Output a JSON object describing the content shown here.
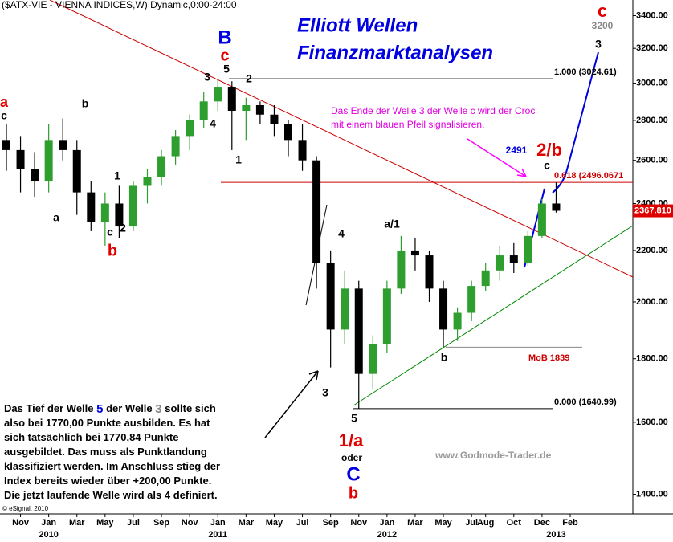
{
  "chart_data": {
    "type": "candlestick",
    "title": "($ATX-VIE - VIENNA INDICES,W) Dynamic,0:00-24:00",
    "heading": [
      "Elliott Wellen",
      "Finanzmarktanalysen"
    ],
    "x": [
      "2009-10",
      "2009-11",
      "2009-12",
      "2010-01",
      "2010-02",
      "2010-03",
      "2010-04",
      "2010-05",
      "2010-06",
      "2010-07",
      "2010-08",
      "2010-09",
      "2010-10",
      "2010-11",
      "2010-12",
      "2011-01",
      "2011-02",
      "2011-03",
      "2011-04",
      "2011-05",
      "2011-06",
      "2011-07",
      "2011-08",
      "2011-09",
      "2011-10",
      "2011-11",
      "2011-12",
      "2012-01",
      "2012-02",
      "2012-03",
      "2012-04",
      "2012-05",
      "2012-06",
      "2012-07",
      "2012-08",
      "2012-09",
      "2012-10",
      "2012-11",
      "2012-12",
      "2013-01"
    ],
    "open": [
      2700,
      2650,
      2560,
      2500,
      2700,
      2650,
      2450,
      2320,
      2400,
      2300,
      2480,
      2520,
      2620,
      2720,
      2800,
      2900,
      2980,
      2850,
      2880,
      2830,
      2780,
      2700,
      2600,
      2150,
      1900,
      2050,
      1750,
      1850,
      2050,
      2200,
      2180,
      2050,
      1900,
      1960,
      2060,
      2120,
      2180,
      2150,
      2260,
      2400
    ],
    "high": [
      2780,
      2720,
      2640,
      2780,
      2810,
      2700,
      2500,
      2450,
      2480,
      2500,
      2560,
      2650,
      2750,
      2830,
      2950,
      3024,
      3010,
      2920,
      2900,
      2880,
      2800,
      2780,
      2620,
      2200,
      2120,
      2080,
      1880,
      2080,
      2260,
      2250,
      2200,
      2080,
      1980,
      2080,
      2150,
      2220,
      2230,
      2280,
      2420,
      2496
    ],
    "low": [
      2550,
      2450,
      2430,
      2450,
      2600,
      2350,
      2280,
      2220,
      2250,
      2280,
      2400,
      2480,
      2580,
      2650,
      2760,
      2850,
      2650,
      2700,
      2780,
      2720,
      2620,
      2550,
      2050,
      1771,
      1850,
      1641,
      1700,
      1820,
      2030,
      2120,
      2000,
      1840,
      1860,
      1930,
      2040,
      2080,
      2110,
      2140,
      2250,
      2360
    ],
    "close": [
      2650,
      2560,
      2500,
      2700,
      2650,
      2450,
      2320,
      2400,
      2300,
      2480,
      2520,
      2620,
      2720,
      2800,
      2900,
      2980,
      2850,
      2880,
      2830,
      2780,
      2700,
      2600,
      2150,
      1900,
      2050,
      1750,
      1850,
      2050,
      2200,
      2180,
      2050,
      1900,
      1960,
      2060,
      2120,
      2180,
      2150,
      2260,
      2400,
      2368
    ],
    "up_color": "#2e9e2e",
    "down_color": "#000000",
    "log_scale": true,
    "ylim": [
      1350,
      3500
    ],
    "yticks": [
      {
        "value": 1400,
        "label": "1400.00"
      },
      {
        "value": 1600,
        "label": "1600.00"
      },
      {
        "value": 1800,
        "label": "1800.00"
      },
      {
        "value": 2000,
        "label": "2000.00"
      },
      {
        "value": 2200,
        "label": "2200.00"
      },
      {
        "value": 2400,
        "label": "2400.00"
      },
      {
        "value": 2600,
        "label": "2600.00"
      },
      {
        "value": 2800,
        "label": "2800.00"
      },
      {
        "value": 3000,
        "label": "3000.00"
      },
      {
        "value": 3200,
        "label": "3200.00"
      },
      {
        "value": 3400,
        "label": "3400.00"
      }
    ],
    "xticks": [
      {
        "value": "2009-11",
        "label": "Nov"
      },
      {
        "value": "2010-01",
        "label": "Jan"
      },
      {
        "value": "2010-03",
        "label": "Mar"
      },
      {
        "value": "2010-05",
        "label": "May"
      },
      {
        "value": "2010-07",
        "label": "Jul"
      },
      {
        "value": "2010-09",
        "label": "Sep"
      },
      {
        "value": "2010-11",
        "label": "Nov"
      },
      {
        "value": "2011-01",
        "label": "Jan"
      },
      {
        "value": "2011-03",
        "label": "Mar"
      },
      {
        "value": "2011-05",
        "label": "May"
      },
      {
        "value": "2011-07",
        "label": "Jul"
      },
      {
        "value": "2011-09",
        "label": "Sep"
      },
      {
        "value": "2011-11",
        "label": "Nov"
      },
      {
        "value": "2012-01",
        "label": "Jan"
      },
      {
        "value": "2012-03",
        "label": "Mar"
      },
      {
        "value": "2012-05",
        "label": "May"
      },
      {
        "value": "2012-07",
        "label": "Jul"
      },
      {
        "value": "2012-08",
        "label": "Aug"
      },
      {
        "value": "2012-10",
        "label": "Oct"
      },
      {
        "value": "2012-12",
        "label": "Dec"
      },
      {
        "value": "2013-02",
        "label": "Feb"
      }
    ],
    "xyears": [
      {
        "value": "2010-01",
        "label": "2010"
      },
      {
        "value": "2011-01",
        "label": "2011"
      },
      {
        "value": "2012-01",
        "label": "2012"
      },
      {
        "value": "2013-01",
        "label": "2013"
      }
    ],
    "levels": [
      {
        "value": 3024.61,
        "label": "1.000 (3024.61)",
        "color": "#000000"
      },
      {
        "value": 2496.0671,
        "label": "0.618 (2496.0671",
        "color": "#cc0000"
      },
      {
        "value": 1640.99,
        "label": "0.000 (1640.99)",
        "color": "#000000"
      },
      {
        "value": 1839,
        "label": "MoB 1839",
        "color": "#888888"
      }
    ],
    "last_price": {
      "value": 2367.81,
      "label": "2367.810"
    },
    "annotations": [
      {
        "text": "a",
        "color": "#e00000"
      },
      {
        "text": "c",
        "color": "#000000"
      },
      {
        "text": "b",
        "color": "#000000"
      },
      {
        "text": "a",
        "color": "#000000"
      },
      {
        "text": "1",
        "color": "#000000"
      },
      {
        "text": "c",
        "color": "#000000"
      },
      {
        "text": "2",
        "color": "#000000"
      },
      {
        "text": "b",
        "color": "#e00000"
      },
      {
        "text": "3",
        "color": "#000000"
      },
      {
        "text": "5",
        "color": "#000000"
      },
      {
        "text": "c",
        "color": "#e00000"
      },
      {
        "text": "B",
        "color": "#0000e0"
      },
      {
        "text": "2",
        "color": "#000000"
      },
      {
        "text": "4",
        "color": "#000000"
      },
      {
        "text": "1",
        "color": "#000000"
      },
      {
        "text": "4",
        "color": "#000000"
      },
      {
        "text": "3",
        "color": "#000000"
      },
      {
        "text": "a/1",
        "color": "#000000"
      },
      {
        "text": "5",
        "color": "#000000"
      },
      {
        "text": "1/a",
        "color": "#e00000"
      },
      {
        "text": "oder",
        "color": "#000000"
      },
      {
        "text": "C",
        "color": "#0000e0"
      },
      {
        "text": "b",
        "color": "#e00000"
      },
      {
        "text": "b",
        "color": "#000000"
      },
      {
        "text": "2/b",
        "color": "#e00000"
      },
      {
        "text": "c",
        "color": "#000000"
      },
      {
        "text": "2491",
        "color": "#0000e0"
      },
      {
        "text": "3",
        "color": "#000000"
      },
      {
        "text": "3200",
        "color": "#888888"
      },
      {
        "text": "c",
        "color": "#e00000"
      }
    ],
    "callout": [
      "Das Ende der Welle 3 der Welle c wird der Croc",
      "mit einem blauen Pfeil signalisieren."
    ],
    "note": [
      [
        {
          "text": "Das Tief der Welle ",
          "color": "#000000"
        },
        {
          "text": "5",
          "color": "#0000e0"
        },
        {
          "text": " der Welle ",
          "color": "#000000"
        },
        {
          "text": "3",
          "color": "#888888"
        },
        {
          "text": " sollte sich",
          "color": "#000000"
        }
      ],
      [
        {
          "text": "also bei 1770,00 Punkte ausbilden. Es hat",
          "color": "#000000"
        }
      ],
      [
        {
          "text": "sich tatsächlich bei 1770,84 Punkte",
          "color": "#000000"
        }
      ],
      [
        {
          "text": "ausgebildet. Das muss als Punktlandung",
          "color": "#000000"
        }
      ],
      [
        {
          "text": "klassifiziert werden. Im Anschluss stieg der",
          "color": "#000000"
        }
      ],
      [
        {
          "text": "Index bereits wieder über +200,00 Punkte.",
          "color": "#000000"
        }
      ],
      [
        {
          "text": "Die jetzt laufende Welle wird als 4 definiert.",
          "color": "#000000"
        }
      ]
    ],
    "watermark": "www.Godmode-Trader.de",
    "copyright": "© eSignal, 2010"
  }
}
